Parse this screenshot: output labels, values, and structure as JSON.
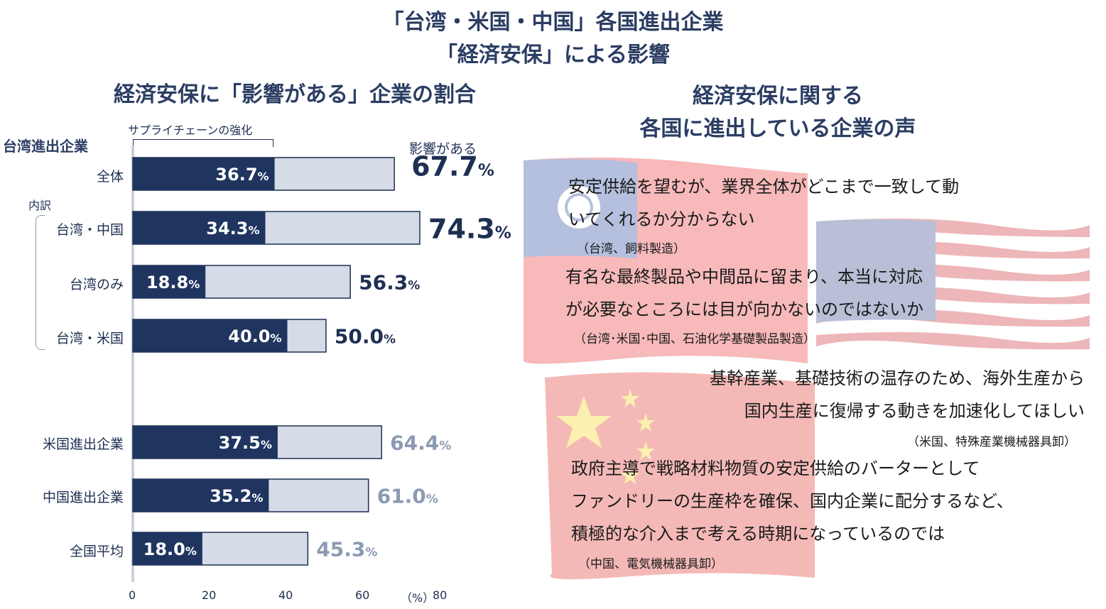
{
  "title": {
    "line1": "「台湾・米国・中国」各国進出企業",
    "line2": "「経済安保」による影響"
  },
  "left": {
    "subtitle": "経済安保に「影響がある」企業の割合",
    "bracket_label": "サプライチェーンの強化",
    "group_heading": "台湾進出企業",
    "breakdown_label": "内訳",
    "impact_label": "影響がある",
    "unit_label": "（%）"
  },
  "chart_data": {
    "type": "bar",
    "orientation": "horizontal",
    "stacked": "overlay",
    "categories": [
      "全体",
      "台湾・中国",
      "台湾のみ",
      "台湾・米国",
      "米国進出企業",
      "中国進出企業",
      "全国平均"
    ],
    "series": [
      {
        "name": "サプライチェーンの強化",
        "values": [
          36.7,
          34.3,
          18.8,
          40.0,
          37.5,
          35.2,
          18.0
        ],
        "color": "#1f3560"
      },
      {
        "name": "影響がある",
        "values": [
          67.7,
          74.3,
          56.3,
          50.0,
          64.4,
          61.0,
          45.3
        ],
        "color": "#d6dce7"
      }
    ],
    "value_labels": {
      "inner": [
        "36.7",
        "34.3",
        "18.8",
        "40.0",
        "37.5",
        "35.2",
        "18.0"
      ],
      "outer": [
        "67.7",
        "74.3",
        "56.3",
        "50.0",
        "64.4",
        "61.0",
        "45.3"
      ],
      "suffix": "%"
    },
    "xlim": [
      0,
      80
    ],
    "xticks": [
      "0",
      "20",
      "40",
      "60",
      "80"
    ],
    "outer_label_colors": [
      "#1e2f52",
      "#1e2f52",
      "#1e2f52",
      "#1e2f52",
      "#8c9ab3",
      "#8c9ab3",
      "#8c9ab3"
    ]
  },
  "right": {
    "subtitle_line1": "経済安保に関する",
    "subtitle_line2": "各国に進出している企業の声",
    "quotes": [
      {
        "line1": "安定供給を望むが、業界全体がどこまで一致して動",
        "line2": "いてくれるか分からない",
        "source": "（台湾、飼料製造）"
      },
      {
        "line1": "有名な最終製品や中間品に留まり、本当に対応",
        "line2": "が必要なところには目が向かないのではないか",
        "source": "（台湾･米国･中国、石油化学基礎製品製造）"
      },
      {
        "line1": "基幹産業、基礎技術の温存のため、海外生産から",
        "line2": "国内生産に復帰する動きを加速化してほしい",
        "source": "（米国、特殊産業機械器具卸）"
      },
      {
        "line1": "政府主導で戦略材料物質の安定供給のバーターとして",
        "line2": "ファンドリーの生産枠を確保、国内企業に配分するなど、",
        "line3": "積極的な介入まで考える時期になっているのでは",
        "source": "（中国、電気機械器具卸）"
      }
    ],
    "flags": [
      "taiwan-flag",
      "usa-flag",
      "china-flag"
    ]
  }
}
